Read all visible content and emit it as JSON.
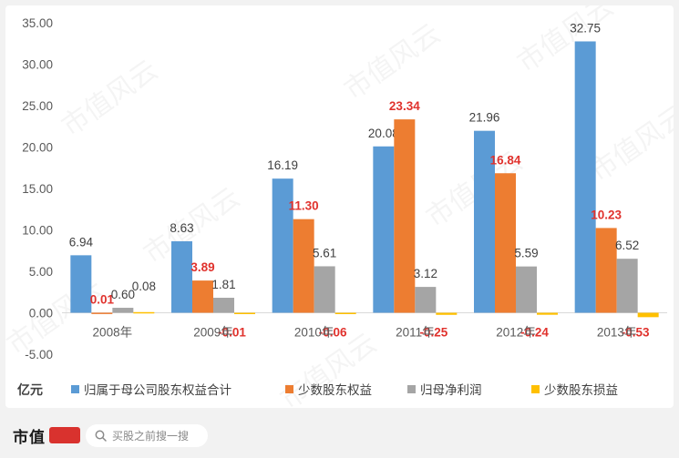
{
  "chart_data": {
    "type": "bar",
    "unit_label": "亿元",
    "categories": [
      "2008年",
      "2009年",
      "2010年",
      "2011年",
      "2012年",
      "2013年"
    ],
    "yticks": [
      "35.00",
      "30.00",
      "25.00",
      "20.00",
      "15.00",
      "10.00",
      "5.00",
      "0.00",
      "-5.00"
    ],
    "ylim": [
      -5,
      35
    ],
    "grid": false,
    "legend_position": "bottom",
    "series": [
      {
        "name": "归属于母公司股东权益合计",
        "color": "#5b9bd5",
        "values": [
          6.94,
          8.63,
          16.19,
          20.08,
          21.96,
          32.75
        ],
        "labels": [
          "6.94",
          "8.63",
          "16.19",
          "20.08",
          "21.96",
          "32.75"
        ],
        "label_color": "#404040"
      },
      {
        "name": "少数股东权益",
        "color": "#ed7d31",
        "values": [
          0.01,
          3.89,
          11.3,
          23.34,
          16.84,
          10.23
        ],
        "labels": [
          "0.01",
          "3.89",
          "11.30",
          "23.34",
          "16.84",
          "10.23"
        ],
        "label_color": "#e0322d"
      },
      {
        "name": "归母净利润",
        "color": "#a5a5a5",
        "values": [
          0.6,
          1.81,
          5.61,
          3.12,
          5.59,
          6.52
        ],
        "labels": [
          "0.60",
          "1.81",
          "5.61",
          "3.12",
          "5.59",
          "6.52"
        ],
        "label_color": "#404040"
      },
      {
        "name": "少数股东损益",
        "color": "#ffc000",
        "values": [
          0.08,
          -0.01,
          -0.06,
          -0.25,
          -0.24,
          -0.53
        ],
        "labels": [
          "0.08",
          "-0.01",
          "-0.06",
          "-0.25",
          "-0.24",
          "-0.53"
        ],
        "label_colors": [
          "#404040",
          "#e0322d",
          "#e0322d",
          "#e0322d",
          "#e0322d",
          "#e0322d"
        ]
      }
    ]
  },
  "watermark": "市值风云",
  "footer": {
    "brand": "市值",
    "search_placeholder": "买股之前搜一搜",
    "search_icon": "search-icon"
  }
}
